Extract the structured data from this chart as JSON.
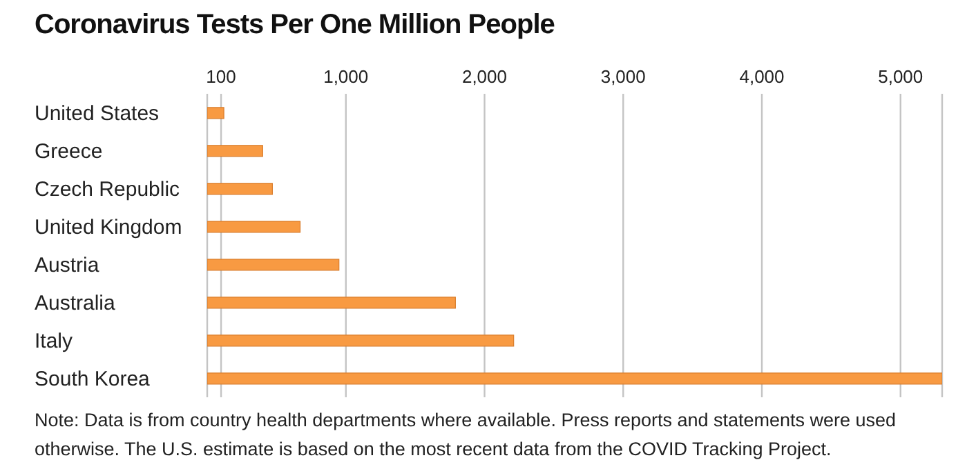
{
  "chart_data": {
    "type": "bar",
    "orientation": "horizontal",
    "title": "Coronavirus Tests Per One Million People",
    "categories": [
      "United States",
      "Greece",
      "Czech Republic",
      "United Kingdom",
      "Austria",
      "Australia",
      "Italy",
      "South Korea"
    ],
    "values": [
      120,
      400,
      470,
      670,
      950,
      1790,
      2210,
      5300
    ],
    "color": "#f89a42",
    "xlim": [
      0,
      5300
    ],
    "xticks": [
      100,
      {
        "value": 1000,
        "label": "1,000"
      },
      {
        "value": 2000,
        "label": "2,000"
      },
      {
        "value": 3000,
        "label": "3,000"
      },
      {
        "value": 4000,
        "label": "4,000"
      },
      {
        "value": 5000,
        "label": "5,000"
      }
    ],
    "grid": "x",
    "annotations": [
      "Note: Data is from country health departments where available. Press reports and statements were used otherwise. The U.S. estimate is based on the most recent data from the COVID Tracking Project."
    ]
  }
}
